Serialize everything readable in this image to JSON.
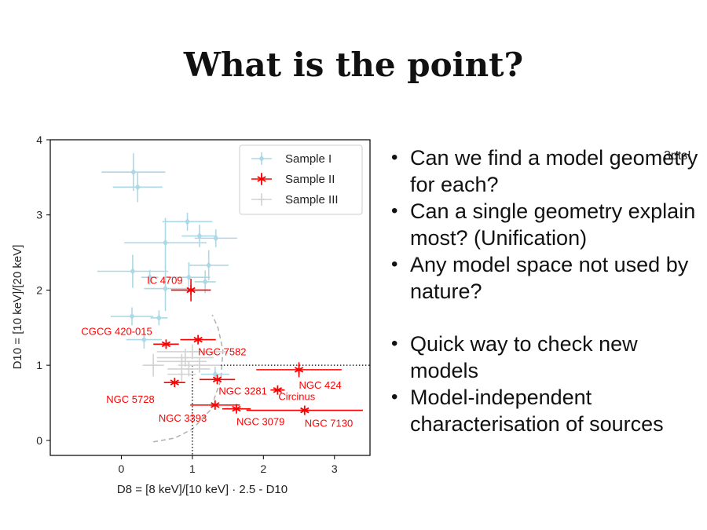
{
  "slide": {
    "title": "What is the point?",
    "note": "3pts!",
    "bullets": [
      "Can we find a model geometry for each?",
      "Can a single geometry explain most? (Unification)",
      "Any model space not used by nature?",
      "Quick way to check new models",
      "Model-independent characterisation of sources"
    ]
  },
  "chart_data": {
    "type": "scatter",
    "xlabel": "D8 = [8 keV]/[10 keV] · 2.5 - D10",
    "ylabel": "D10 = [10 keV]/[20 keV]",
    "xlim": [
      -1.0,
      3.5
    ],
    "ylim": [
      -0.2,
      4.0
    ],
    "xticks": [
      0,
      1,
      2,
      3
    ],
    "yticks": [
      0,
      1,
      2,
      3,
      4
    ],
    "legend_position": "top-right",
    "colors": {
      "sample1": "#add8e6",
      "sample2": "#ff0000",
      "sample3": "#d3d3d3",
      "guides": "#000000",
      "curve": "#b0b0b0"
    },
    "series": [
      {
        "name": "Sample I",
        "marker": "diamond",
        "color": "#add8e6",
        "points": [
          {
            "x": 0.17,
            "y": 3.57,
            "xerr": 0.45,
            "yerr": 0.25
          },
          {
            "x": 0.23,
            "y": 3.37,
            "xerr": 0.35,
            "yerr": 0.2
          },
          {
            "x": 0.93,
            "y": 2.91,
            "xerr": 0.35,
            "yerr": 0.12
          },
          {
            "x": 1.1,
            "y": 2.72,
            "xerr": 0.25,
            "yerr": 0.15
          },
          {
            "x": 1.33,
            "y": 2.69,
            "xerr": 0.3,
            "yerr": 0.12
          },
          {
            "x": 0.62,
            "y": 2.63,
            "xerr": 0.58,
            "yerr": 0.33
          },
          {
            "x": 1.23,
            "y": 2.33,
            "xerr": 0.28,
            "yerr": 0.2
          },
          {
            "x": 0.16,
            "y": 2.25,
            "xerr": 0.5,
            "yerr": 0.22
          },
          {
            "x": 0.4,
            "y": 2.17,
            "xerr": 0.12,
            "yerr": 0.1
          },
          {
            "x": 0.95,
            "y": 2.17,
            "xerr": 0.3,
            "yerr": 0.2
          },
          {
            "x": 1.18,
            "y": 2.11,
            "xerr": 0.15,
            "yerr": 0.15
          },
          {
            "x": 0.62,
            "y": 2.02,
            "xerr": 0.3,
            "yerr": 0.3
          },
          {
            "x": 0.15,
            "y": 1.65,
            "xerr": 0.3,
            "yerr": 0.12
          },
          {
            "x": 0.53,
            "y": 1.63,
            "xerr": 0.12,
            "yerr": 0.1
          },
          {
            "x": 0.32,
            "y": 1.34,
            "xerr": 0.25,
            "yerr": 0.12
          },
          {
            "x": 1.32,
            "y": 0.88,
            "xerr": 0.2,
            "yerr": 0.1
          }
        ]
      },
      {
        "name": "Sample II",
        "marker": "asterisk",
        "color": "#ff0000",
        "points": [
          {
            "x": 0.98,
            "y": 2.0,
            "xerr": 0.28,
            "yerr": 0.15,
            "label": "IC 4709"
          },
          {
            "x": 0.63,
            "y": 1.28,
            "xerr": 0.18,
            "yerr": 0.0,
            "label": "CGCG 420-015"
          },
          {
            "x": 1.08,
            "y": 1.34,
            "xerr": 0.25,
            "yerr": 0.0,
            "label": "NGC 7582"
          },
          {
            "x": 2.5,
            "y": 0.94,
            "xerr": 0.6,
            "yerr": 0.1,
            "label": "NGC 424"
          },
          {
            "x": 1.35,
            "y": 0.81,
            "xerr": 0.25,
            "yerr": 0.0
          },
          {
            "x": 0.75,
            "y": 0.77,
            "xerr": 0.15,
            "yerr": 0.0,
            "label": "NGC 5728"
          },
          {
            "x": 2.2,
            "y": 0.67,
            "xerr": 0.1,
            "yerr": 0.0,
            "label": "NGC 3281"
          },
          {
            "x": 1.32,
            "y": 0.47,
            "xerr": 0.35,
            "yerr": 0.0,
            "label": "NGC 3393"
          },
          {
            "x": 1.62,
            "y": 0.42,
            "xerr": 0.2,
            "yerr": 0.0,
            "label": "NGC 3079"
          },
          {
            "x": 2.58,
            "y": 0.4,
            "xerr": 0.82,
            "yerr": 0.0,
            "label": "NGC 7130"
          }
        ]
      },
      {
        "name": "Sample III",
        "marker": "plus",
        "color": "#d3d3d3",
        "points": [
          {
            "x": 1.0,
            "y": 1.18,
            "xerr": 0.5,
            "yerr": 0.1
          },
          {
            "x": 0.9,
            "y": 1.1,
            "xerr": 0.4,
            "yerr": 0.12
          },
          {
            "x": 0.85,
            "y": 1.05,
            "xerr": 0.35,
            "yerr": 0.1
          },
          {
            "x": 1.1,
            "y": 1.0,
            "xerr": 0.3,
            "yerr": 0.1
          },
          {
            "x": 0.45,
            "y": 1.0,
            "xerr": 0.15,
            "yerr": 0.15
          },
          {
            "x": 0.95,
            "y": 0.95,
            "xerr": 0.3,
            "yerr": 0.1
          },
          {
            "x": 0.85,
            "y": 0.88,
            "xerr": 0.2,
            "yerr": 0.1
          }
        ]
      }
    ],
    "annotations": [
      {
        "text": "Circinus",
        "x": 2.21,
        "y": 0.59
      }
    ],
    "guides": {
      "dotted_x": 1.0,
      "dotted_y": 1.0
    },
    "curve": [
      [
        0.45,
        -0.02
      ],
      [
        0.75,
        0.03
      ],
      [
        1.0,
        0.15
      ],
      [
        1.25,
        0.4
      ],
      [
        1.4,
        0.8
      ],
      [
        1.43,
        1.2
      ],
      [
        1.36,
        1.5
      ],
      [
        1.28,
        1.67
      ]
    ]
  }
}
